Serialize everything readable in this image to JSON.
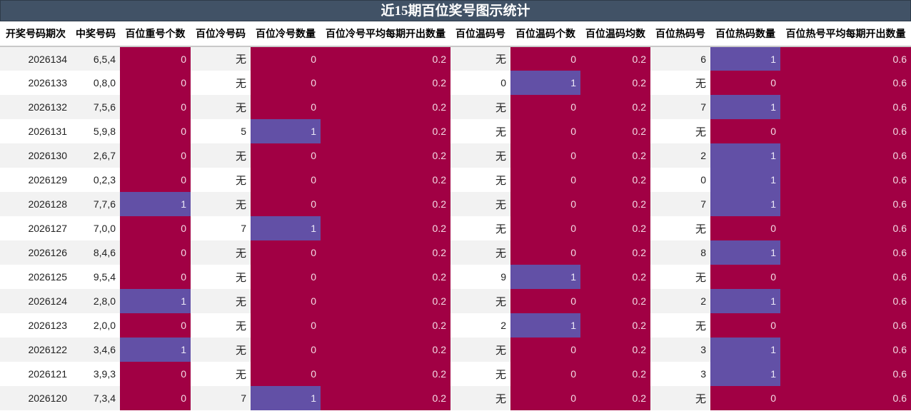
{
  "title": "近15期百位奖号图示统计",
  "columns": [
    "开奖号码期次",
    "中奖号码",
    "百位重号个数",
    "百位冷号码",
    "百位冷号数量",
    "百位冷号平均每期开出数量",
    "百位温码号",
    "百位温码个数",
    "百位温码均数",
    "百位热码号",
    "百位热码数量",
    "百位热号平均每期开出数量"
  ],
  "rows": [
    [
      "2026134",
      "6,5,4",
      "0",
      "无",
      "0",
      "0.2",
      "无",
      "0",
      "0.2",
      "6",
      "1",
      "0.6"
    ],
    [
      "2026133",
      "0,8,0",
      "0",
      "无",
      "0",
      "0.2",
      "0",
      "1",
      "0.2",
      "无",
      "0",
      "0.6"
    ],
    [
      "2026132",
      "7,5,6",
      "0",
      "无",
      "0",
      "0.2",
      "无",
      "0",
      "0.2",
      "7",
      "1",
      "0.6"
    ],
    [
      "2026131",
      "5,9,8",
      "0",
      "5",
      "1",
      "0.2",
      "无",
      "0",
      "0.2",
      "无",
      "0",
      "0.6"
    ],
    [
      "2026130",
      "2,6,7",
      "0",
      "无",
      "0",
      "0.2",
      "无",
      "0",
      "0.2",
      "2",
      "1",
      "0.6"
    ],
    [
      "2026129",
      "0,2,3",
      "0",
      "无",
      "0",
      "0.2",
      "无",
      "0",
      "0.2",
      "0",
      "1",
      "0.6"
    ],
    [
      "2026128",
      "7,7,6",
      "1",
      "无",
      "0",
      "0.2",
      "无",
      "0",
      "0.2",
      "7",
      "1",
      "0.6"
    ],
    [
      "2026127",
      "7,0,0",
      "0",
      "7",
      "1",
      "0.2",
      "无",
      "0",
      "0.2",
      "无",
      "0",
      "0.6"
    ],
    [
      "2026126",
      "8,4,6",
      "0",
      "无",
      "0",
      "0.2",
      "无",
      "0",
      "0.2",
      "8",
      "1",
      "0.6"
    ],
    [
      "2026125",
      "9,5,4",
      "0",
      "无",
      "0",
      "0.2",
      "9",
      "1",
      "0.2",
      "无",
      "0",
      "0.6"
    ],
    [
      "2026124",
      "2,8,0",
      "1",
      "无",
      "0",
      "0.2",
      "无",
      "0",
      "0.2",
      "2",
      "1",
      "0.6"
    ],
    [
      "2026123",
      "2,0,0",
      "0",
      "无",
      "0",
      "0.2",
      "2",
      "1",
      "0.2",
      "无",
      "0",
      "0.6"
    ],
    [
      "2026122",
      "3,4,6",
      "1",
      "无",
      "0",
      "0.2",
      "无",
      "0",
      "0.2",
      "3",
      "1",
      "0.6"
    ],
    [
      "2026121",
      "3,9,3",
      "0",
      "无",
      "0",
      "0.2",
      "无",
      "0",
      "0.2",
      "3",
      "1",
      "0.6"
    ],
    [
      "2026120",
      "7,3,4",
      "0",
      "7",
      "1",
      "0.2",
      "无",
      "0",
      "0.2",
      "无",
      "0",
      "0.6"
    ]
  ],
  "colors": {
    "header_bg": "#415266",
    "cell_zero": "#a10044",
    "cell_one": "#6250a6",
    "row_alt": "#f2f2f2"
  }
}
